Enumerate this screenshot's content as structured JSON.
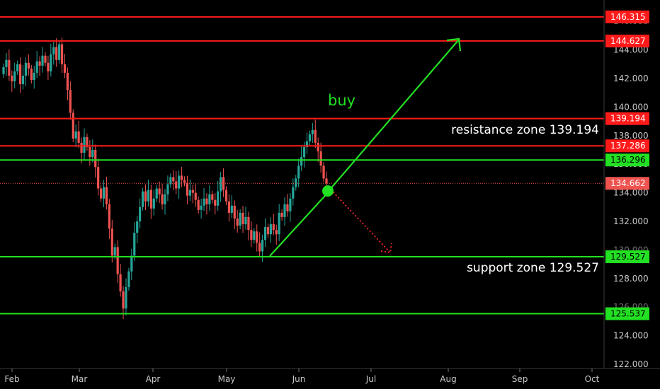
{
  "chart_data": {
    "type": "candlestick",
    "instrument_note": "",
    "y_ticks": [
      "122.000",
      "124.000",
      "126.000",
      "128.000",
      "130.000",
      "132.000",
      "134.000",
      "136.000",
      "138.000",
      "140.000",
      "142.000",
      "144.000",
      "146.000"
    ],
    "ylim": [
      122,
      147.2
    ],
    "x_ticks": [
      "Feb",
      "Mar",
      "Apr",
      "May",
      "Jun",
      "Jul",
      "Aug",
      "Sep",
      "Oct"
    ],
    "levels": [
      {
        "value": 146.315,
        "label": "146.315",
        "color": "#ff1a1a",
        "kind": "line"
      },
      {
        "value": 144.627,
        "label": "144.627",
        "color": "#ff1a1a",
        "kind": "line"
      },
      {
        "value": 139.194,
        "label": "139.194",
        "color": "#ff1a1a",
        "kind": "line"
      },
      {
        "value": 137.286,
        "label": "137.286",
        "color": "#ff1a1a",
        "kind": "line"
      },
      {
        "value": 136.296,
        "label": "136.296",
        "color": "#22e022",
        "kind": "line"
      },
      {
        "value": 134.662,
        "label": "134.662",
        "color": "#ef5350",
        "kind": "dotted"
      },
      {
        "value": 129.527,
        "label": "129.527",
        "color": "#22e022",
        "kind": "line"
      },
      {
        "value": 125.537,
        "label": "125.537",
        "color": "#22e022",
        "kind": "line"
      }
    ],
    "annotations": {
      "resistance": "resistance zone 139.194",
      "support": "support zone 129.527",
      "buy": "buy"
    },
    "candles_close": [
      142.8,
      143.3,
      142.2,
      141.8,
      142.5,
      143.0,
      141.6,
      142.2,
      143.1,
      142.7,
      141.9,
      142.4,
      143.2,
      142.9,
      143.6,
      143.1,
      142.5,
      143.7,
      144.2,
      143.3,
      144.4,
      143.0,
      142.4,
      141.2,
      139.6,
      137.8,
      138.3,
      137.5,
      136.8,
      137.9,
      137.2,
      136.5,
      137.0,
      135.8,
      134.3,
      133.6,
      134.4,
      133.2,
      131.5,
      129.6,
      130.2,
      128.3,
      127.1,
      125.9,
      127.4,
      128.5,
      129.6,
      131.2,
      132.0,
      133.0,
      134.1,
      133.4,
      134.2,
      132.9,
      133.6,
      134.3,
      133.9,
      133.2,
      133.9,
      134.6,
      135.1,
      134.8,
      134.3,
      135.2,
      134.9,
      134.7,
      133.8,
      134.2,
      134.0,
      133.5,
      132.8,
      133.1,
      133.6,
      133.2,
      133.9,
      133.5,
      133.1,
      134.1,
      135.1,
      134.2,
      133.4,
      132.6,
      133.1,
      132.2,
      131.7,
      132.6,
      131.8,
      132.3,
      131.4,
      130.7,
      131.3,
      130.5,
      129.9,
      130.7,
      131.6,
      131.1,
      131.8,
      131.4,
      131.1,
      132.6,
      132.3,
      133.2,
      132.7,
      133.6,
      134.4,
      135.0,
      135.9,
      136.5,
      137.2,
      137.6,
      138.1,
      138.4,
      137.5,
      136.9,
      135.9,
      135.0,
      134.66
    ]
  }
}
